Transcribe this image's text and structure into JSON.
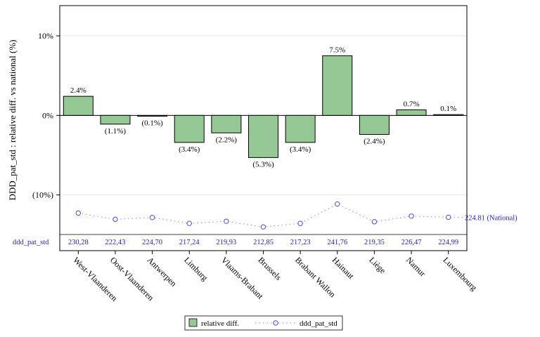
{
  "chart_data": {
    "type": "bar",
    "ylabel": "DDD_pat_std : relative diff. vs national (%)",
    "yticks": [
      {
        "value": 10,
        "label": "10%"
      },
      {
        "value": 0,
        "label": "0%"
      },
      {
        "value": -10,
        "label": "(10%)"
      }
    ],
    "categories": [
      "West-Vlaanderen",
      "Oost-Vlaanderen",
      "Antwerpen",
      "Limburg",
      "Vlaams-Brabant",
      "Brussels",
      "Brabant Wallon",
      "Hainaut",
      "Liège",
      "Namur",
      "Luxembourg"
    ],
    "series": [
      {
        "name": "relative diff.",
        "values": [
          2.4,
          -1.1,
          -0.1,
          -3.4,
          -2.2,
          -5.3,
          -3.4,
          7.5,
          -2.4,
          0.7,
          0.1
        ],
        "labels": [
          "2.4%",
          "(1.1%)",
          "(0.1%)",
          "(3.4%)",
          "(2.2%)",
          "(5.3%)",
          "(3.4%)",
          "7.5%",
          "(2.4%)",
          "0.7%",
          "0.1%"
        ],
        "color": "#96c896"
      },
      {
        "name": "ddd_pat_std",
        "values": [
          230.28,
          222.43,
          224.7,
          217.24,
          219.93,
          212.85,
          217.23,
          241.76,
          219.35,
          226.47,
          224.99
        ],
        "labels": [
          "230,28",
          "222,43",
          "224,70",
          "217,24",
          "219,93",
          "212,85",
          "217,23",
          "241,76",
          "219,35",
          "226,47",
          "224,99"
        ],
        "color": "#4a4ae0"
      }
    ],
    "table_row_label": "ddd_pat_std",
    "national_value": 224.81,
    "national_label": "224.81 (National)",
    "ylim": [
      -14.8,
      13.8
    ],
    "grid": true,
    "legend_position": "bottom"
  }
}
